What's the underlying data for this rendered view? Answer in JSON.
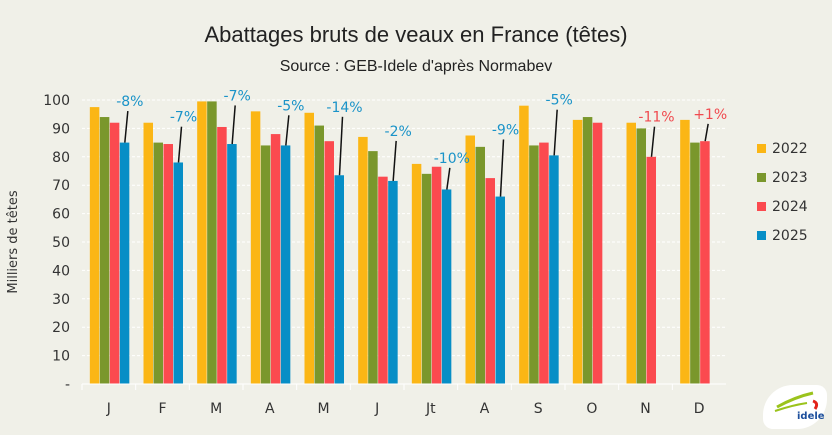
{
  "chart_data": {
    "type": "bar",
    "title": "Abattages bruts de veaux en France (têtes)",
    "subtitle": "Source : GEB-Idele d'après Normabev",
    "xlabel": "",
    "ylabel": "Milliers de têtes",
    "ylim": [
      0,
      100
    ],
    "yticks": [
      "-",
      "10",
      "20",
      "30",
      "40",
      "50",
      "60",
      "70",
      "80",
      "90",
      "100"
    ],
    "grid": true,
    "legend_position": "right",
    "categories": [
      "J",
      "F",
      "M",
      "A",
      "M",
      "J",
      "Jt",
      "A",
      "S",
      "O",
      "N",
      "D"
    ],
    "series": [
      {
        "name": "2022",
        "color": "#fbb615",
        "values": [
          97.5,
          92,
          99.5,
          96,
          95.5,
          87,
          77.5,
          87.5,
          98,
          93,
          92,
          93
        ]
      },
      {
        "name": "2023",
        "color": "#7a972c",
        "values": [
          94,
          85,
          99.5,
          84,
          91,
          82,
          74,
          83.5,
          84,
          94,
          90,
          85
        ]
      },
      {
        "name": "2024",
        "color": "#fb4a4f",
        "values": [
          92,
          84.5,
          90.5,
          88,
          85.5,
          73,
          76.5,
          72.5,
          85,
          92,
          80,
          85.5
        ]
      },
      {
        "name": "2025",
        "color": "#078ec6",
        "values": [
          85,
          78,
          84.5,
          84,
          73.5,
          71.5,
          68.5,
          66,
          80.5,
          null,
          null,
          null
        ]
      }
    ],
    "annotations": [
      {
        "category": 0,
        "text": "-8%",
        "color": "#1a93c8"
      },
      {
        "category": 1,
        "text": "-7%",
        "color": "#1a93c8"
      },
      {
        "category": 2,
        "text": "-7%",
        "color": "#1a93c8"
      },
      {
        "category": 3,
        "text": "-5%",
        "color": "#1a93c8"
      },
      {
        "category": 4,
        "text": "-14%",
        "color": "#1a93c8"
      },
      {
        "category": 5,
        "text": "-2%",
        "color": "#1a93c8"
      },
      {
        "category": 6,
        "text": "-10%",
        "color": "#1a93c8"
      },
      {
        "category": 7,
        "text": "-9%",
        "color": "#1a93c8"
      },
      {
        "category": 8,
        "text": "-5%",
        "color": "#1a93c8"
      },
      {
        "category": 10,
        "text": "-11%",
        "color": "#f04a4f"
      },
      {
        "category": 11,
        "text": "+1%",
        "color": "#f04a4f"
      }
    ]
  },
  "logo_text": "INSTITUT DE L'ÉLEVAGE idele"
}
